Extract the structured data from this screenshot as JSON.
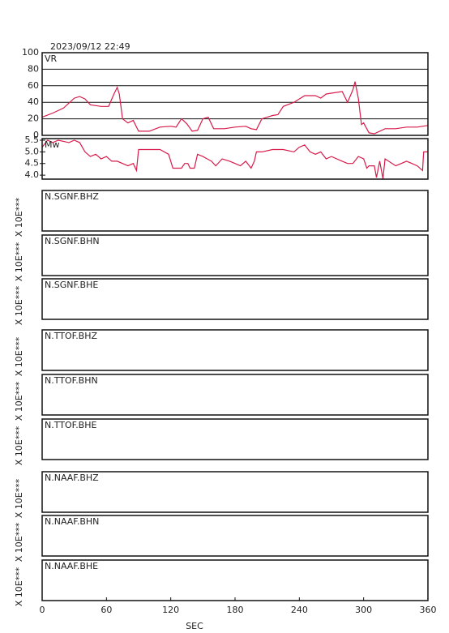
{
  "chart_data": [
    {
      "type": "line",
      "title": "2023/09/12 22:49",
      "xlim": [
        0,
        360
      ],
      "ylim": [
        0,
        100
      ],
      "yticks": [
        0,
        20,
        40,
        60,
        80,
        100
      ],
      "grid": true,
      "x": [
        0,
        10,
        20,
        30,
        35,
        40,
        45,
        55,
        62,
        67,
        70,
        72,
        75,
        80,
        85,
        90,
        100,
        110,
        120,
        125,
        130,
        135,
        140,
        145,
        150,
        155,
        160,
        170,
        180,
        190,
        195,
        200,
        205,
        210,
        215,
        220,
        225,
        235,
        245,
        255,
        260,
        265,
        280,
        285,
        290,
        292,
        295,
        298,
        300,
        305,
        310,
        320,
        330,
        340,
        350,
        360
      ],
      "series": [
        {
          "name": "VR",
          "color": "#d81b4a",
          "values": [
            22,
            27,
            33,
            45,
            47,
            44,
            37,
            35,
            35,
            50,
            58,
            50,
            20,
            15,
            18,
            5,
            5,
            10,
            11,
            10,
            20,
            14,
            5,
            6,
            20,
            22,
            8,
            8,
            10,
            11,
            8,
            7,
            20,
            22,
            24,
            25,
            35,
            40,
            48,
            48,
            45,
            50,
            53,
            40,
            55,
            65,
            45,
            13,
            15,
            3,
            2,
            8,
            8,
            10,
            10,
            12
          ]
        }
      ]
    },
    {
      "type": "line",
      "xlim": [
        0,
        360
      ],
      "ylim": [
        3.83,
        5.57
      ],
      "yticks": [
        {
          "value": 4,
          "label": "4.0"
        },
        4.5,
        {
          "value": 5,
          "label": "5.0"
        },
        5.5
      ],
      "grid": false,
      "x": [
        0,
        5,
        10,
        15,
        20,
        25,
        30,
        35,
        40,
        45,
        50,
        55,
        60,
        65,
        70,
        75,
        80,
        85,
        88,
        90,
        100,
        105,
        110,
        118,
        120,
        122,
        130,
        133,
        136,
        138,
        142,
        145,
        150,
        158,
        162,
        168,
        175,
        180,
        185,
        190,
        195,
        198,
        200,
        205,
        215,
        225,
        235,
        240,
        245,
        250,
        255,
        260,
        265,
        270,
        280,
        285,
        290,
        295,
        300,
        303,
        305,
        310,
        312,
        315,
        318,
        320,
        330,
        340,
        345,
        350,
        355,
        356,
        360
      ],
      "series": [
        {
          "name": "Mw",
          "color": "#d81b4a",
          "values": [
            5.2,
            5.5,
            5.4,
            5.5,
            5.45,
            5.4,
            5.5,
            5.4,
            5.0,
            4.8,
            4.9,
            4.7,
            4.8,
            4.6,
            4.6,
            4.5,
            4.4,
            4.5,
            4.2,
            5.1,
            5.1,
            5.1,
            5.1,
            4.9,
            4.6,
            4.3,
            4.3,
            4.5,
            4.5,
            4.3,
            4.3,
            4.9,
            4.8,
            4.6,
            4.4,
            4.7,
            4.6,
            4.5,
            4.4,
            4.6,
            4.3,
            4.6,
            5.0,
            5.0,
            5.1,
            5.1,
            5.0,
            5.2,
            5.3,
            5.0,
            4.9,
            5.0,
            4.7,
            4.8,
            4.6,
            4.5,
            4.5,
            4.8,
            4.7,
            4.3,
            4.4,
            4.4,
            3.9,
            4.6,
            3.85,
            4.7,
            4.4,
            4.6,
            4.5,
            4.4,
            4.2,
            5.0,
            5.0
          ]
        }
      ]
    },
    {
      "type": "line",
      "label": "N.SGNF.BHZ",
      "ylabel": "X 10E***"
    },
    {
      "type": "line",
      "label": "N.SGNF.BHN",
      "ylabel": "X 10E***"
    },
    {
      "type": "line",
      "label": "N.SGNF.BHE",
      "ylabel": "X 10E***"
    },
    {
      "type": "line",
      "label": "N.TTOF.BHZ",
      "ylabel": "X 10E***"
    },
    {
      "type": "line",
      "label": "N.TTOF.BHN",
      "ylabel": "X 10E***"
    },
    {
      "type": "line",
      "label": "N.TTOF.BHE",
      "ylabel": "X 10E***"
    },
    {
      "type": "line",
      "label": "N.NAAF.BHZ",
      "ylabel": "X 10E***"
    },
    {
      "type": "line",
      "label": "N.NAAF.BHN",
      "ylabel": "X 10E***"
    },
    {
      "type": "line",
      "label": "N.NAAF.BHE",
      "ylabel": "X 10E***",
      "xlim": [
        0,
        360
      ],
      "xticks": [
        0,
        60,
        120,
        180,
        240,
        300,
        360
      ],
      "xlabel": "SEC"
    }
  ]
}
